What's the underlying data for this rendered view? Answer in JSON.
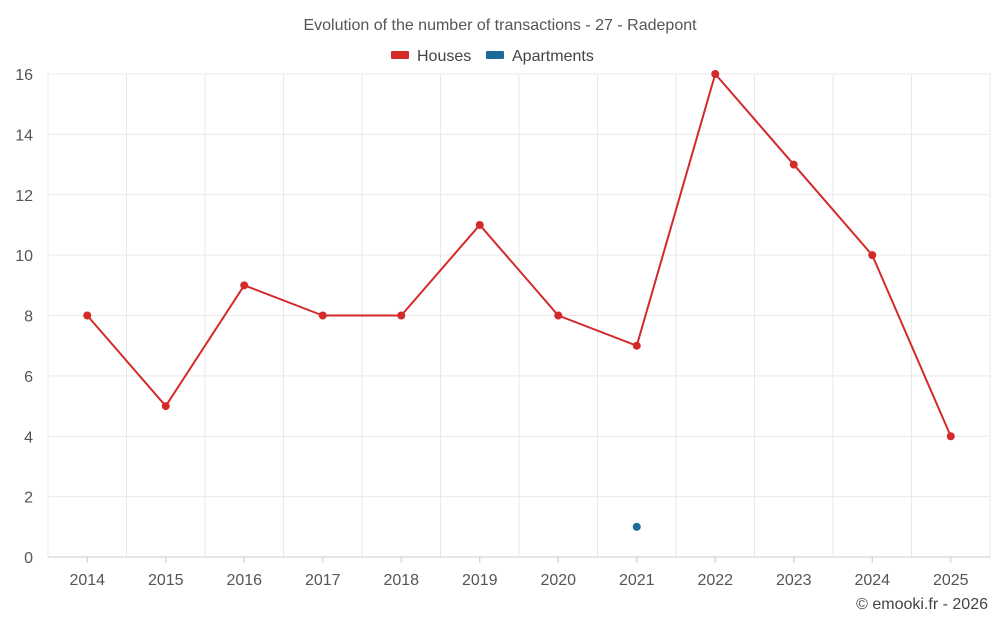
{
  "chart_data": {
    "type": "line",
    "title": "Evolution of the number of transactions - 27 - Radepont",
    "xlabel": "",
    "ylabel": "",
    "categories": [
      "2014",
      "2015",
      "2016",
      "2017",
      "2018",
      "2019",
      "2020",
      "2021",
      "2022",
      "2023",
      "2024",
      "2025"
    ],
    "ylim": [
      0,
      16
    ],
    "yticks": [
      0,
      2,
      4,
      6,
      8,
      10,
      12,
      14,
      16
    ],
    "grid": true,
    "legend_position": "top-center",
    "series": [
      {
        "name": "Houses",
        "color": "#d32a2a",
        "values": [
          8,
          5,
          9,
          8,
          8,
          11,
          8,
          7,
          16,
          13,
          10,
          4
        ]
      },
      {
        "name": "Apartments",
        "color": "#1a6a9a",
        "values": [
          null,
          null,
          null,
          null,
          null,
          null,
          null,
          1,
          null,
          null,
          null,
          null
        ]
      }
    ],
    "credit": "© emooki.fr - 2026"
  }
}
